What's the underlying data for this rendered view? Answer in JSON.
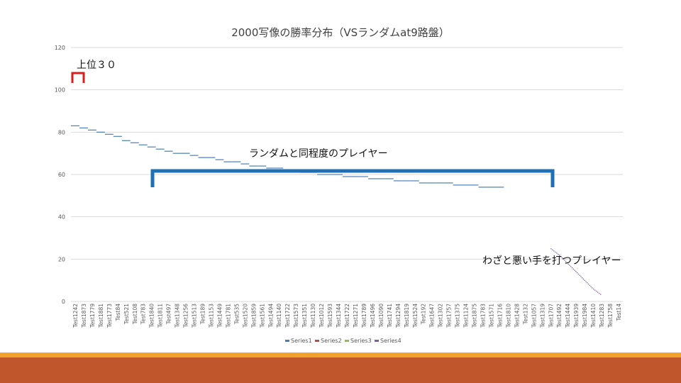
{
  "chart_data": {
    "type": "line",
    "title": "2000写像の勝率分布（VSランダムat9路盤）",
    "ylim": [
      0,
      120
    ],
    "yticks": [
      0,
      20,
      40,
      60,
      80,
      100,
      120
    ],
    "grid": true,
    "legend_placement": "bottom",
    "categories": [
      "Test1242",
      "Test1873",
      "Test1779",
      "Test1881",
      "Test1773",
      "Test84",
      "Test521",
      "Test108",
      "Test783",
      "Test1840",
      "Test1811",
      "Test497",
      "Test1348",
      "Test1256",
      "Test1513",
      "Test189",
      "Test1153",
      "Test1449",
      "Test1781",
      "Test535",
      "Test1520",
      "Test1859",
      "Test1561",
      "Test1494",
      "Test1140",
      "Test1722",
      "Test1573",
      "Test1351",
      "Test1130",
      "Test1012",
      "Test1593",
      "Test1344",
      "Test1722",
      "Test1271",
      "Test1789",
      "Test1496",
      "Test1090",
      "Test1741",
      "Test1294",
      "Test1819",
      "Test1524",
      "Test192",
      "Test1647",
      "Test1302",
      "Test1757",
      "Test1375",
      "Test1124",
      "Test1875",
      "Test1783",
      "Test1571",
      "Test1716",
      "Test1810",
      "Test1428",
      "Test132",
      "Test1057",
      "Test1319",
      "Test1707",
      "Test1492",
      "Test1444",
      "Test1939",
      "Test1984",
      "Test1410",
      "Test1283",
      "Test1758",
      "Test14"
    ],
    "legend": [
      "Series1",
      "Series2",
      "Series3",
      "Series4"
    ],
    "series": [
      {
        "name": "Series1",
        "color": "#4a7ebb",
        "points": [
          [
            0,
            83
          ],
          [
            1,
            82
          ],
          [
            2,
            81
          ],
          [
            3,
            80
          ],
          [
            4,
            79
          ],
          [
            5,
            78
          ],
          [
            6,
            76
          ],
          [
            7,
            75
          ],
          [
            8,
            74
          ],
          [
            9,
            73
          ],
          [
            10,
            72
          ],
          [
            11,
            71
          ],
          [
            12,
            70
          ],
          [
            13,
            70
          ],
          [
            14,
            69
          ],
          [
            15,
            68
          ],
          [
            16,
            68
          ],
          [
            17,
            67
          ],
          [
            18,
            66
          ],
          [
            19,
            66
          ],
          [
            20,
            65
          ],
          [
            21,
            64
          ],
          [
            22,
            64
          ],
          [
            23,
            63
          ],
          [
            24,
            63
          ],
          [
            25,
            62
          ],
          [
            26,
            62
          ],
          [
            27,
            61
          ],
          [
            28,
            61
          ],
          [
            29,
            60
          ],
          [
            30,
            60
          ],
          [
            31,
            60
          ],
          [
            32,
            59
          ],
          [
            33,
            59
          ],
          [
            34,
            59
          ],
          [
            35,
            58
          ],
          [
            36,
            58
          ],
          [
            37,
            58
          ],
          [
            38,
            57
          ],
          [
            39,
            57
          ],
          [
            40,
            57
          ],
          [
            41,
            56
          ],
          [
            42,
            56
          ],
          [
            43,
            56
          ],
          [
            44,
            56
          ],
          [
            45,
            55
          ],
          [
            46,
            55
          ],
          [
            47,
            55
          ],
          [
            48,
            54
          ],
          [
            49,
            54
          ],
          [
            50,
            54
          ]
        ]
      },
      {
        "name": "Series2",
        "color": "#be4b48",
        "points": []
      },
      {
        "name": "Series3",
        "color": "#98b954",
        "points": []
      },
      {
        "name": "Series4",
        "color": "#7d60a0",
        "points": [
          [
            56,
            25
          ],
          [
            57,
            22
          ],
          [
            58,
            18
          ],
          [
            59,
            14
          ],
          [
            60,
            10
          ],
          [
            61,
            6
          ],
          [
            62,
            3
          ]
        ]
      }
    ]
  },
  "annotations": {
    "top30": "上位３０",
    "random_level": "ランダムと同程度のプレイヤー",
    "bad_moves": "わざと悪い手を打つプレイヤー"
  },
  "colors": {
    "bracket_red": "#d62020",
    "bracket_blue": "#1f6fb5",
    "footer_orange": "#f0a22a",
    "footer_rust": "#c0572c"
  }
}
